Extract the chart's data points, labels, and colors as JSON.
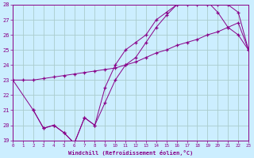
{
  "xlabel": "Windchill (Refroidissement éolien,°C)",
  "bg_color": "#cceeff",
  "grid_color": "#aacccc",
  "line_color": "#880088",
  "xmin": 0,
  "xmax": 23,
  "ymin": 19,
  "ymax": 28,
  "xticks": [
    0,
    1,
    2,
    3,
    4,
    5,
    6,
    7,
    8,
    9,
    10,
    11,
    12,
    13,
    14,
    15,
    16,
    17,
    18,
    19,
    20,
    21,
    22,
    23
  ],
  "yticks": [
    19,
    20,
    21,
    22,
    23,
    24,
    25,
    26,
    27,
    28
  ],
  "series1_x": [
    0,
    1,
    2,
    3,
    4,
    5,
    6,
    7,
    8,
    9,
    10,
    11,
    12,
    13,
    14,
    15,
    16,
    17,
    18,
    19,
    20,
    21,
    22,
    23
  ],
  "series1_y": [
    23.0,
    23.0,
    23.0,
    23.1,
    23.2,
    23.3,
    23.4,
    23.5,
    23.6,
    23.7,
    23.8,
    24.0,
    24.2,
    24.5,
    24.8,
    25.0,
    25.3,
    25.5,
    25.7,
    26.0,
    26.2,
    26.5,
    26.8,
    25.0
  ],
  "series2_x": [
    0,
    2,
    3,
    4,
    5,
    6,
    7,
    8,
    9,
    10,
    11,
    12,
    13,
    14,
    15,
    16,
    17,
    18,
    19,
    20,
    21,
    22,
    23
  ],
  "series2_y": [
    23.0,
    21.0,
    19.8,
    20.0,
    19.5,
    18.8,
    20.5,
    20.0,
    21.5,
    23.0,
    24.0,
    24.5,
    25.5,
    26.5,
    27.3,
    28.0,
    28.0,
    28.0,
    28.0,
    28.0,
    28.0,
    27.5,
    25.0
  ],
  "series3_x": [
    2,
    3,
    4,
    5,
    6,
    7,
    8,
    9,
    10,
    11,
    12,
    13,
    14,
    15,
    16,
    17,
    18,
    19,
    20,
    21,
    22,
    23
  ],
  "series3_y": [
    21.0,
    19.8,
    20.0,
    19.5,
    18.8,
    20.5,
    20.0,
    22.5,
    24.0,
    25.0,
    25.5,
    26.0,
    27.0,
    27.5,
    28.0,
    28.2,
    28.2,
    28.2,
    27.5,
    26.5,
    26.0,
    25.0
  ]
}
